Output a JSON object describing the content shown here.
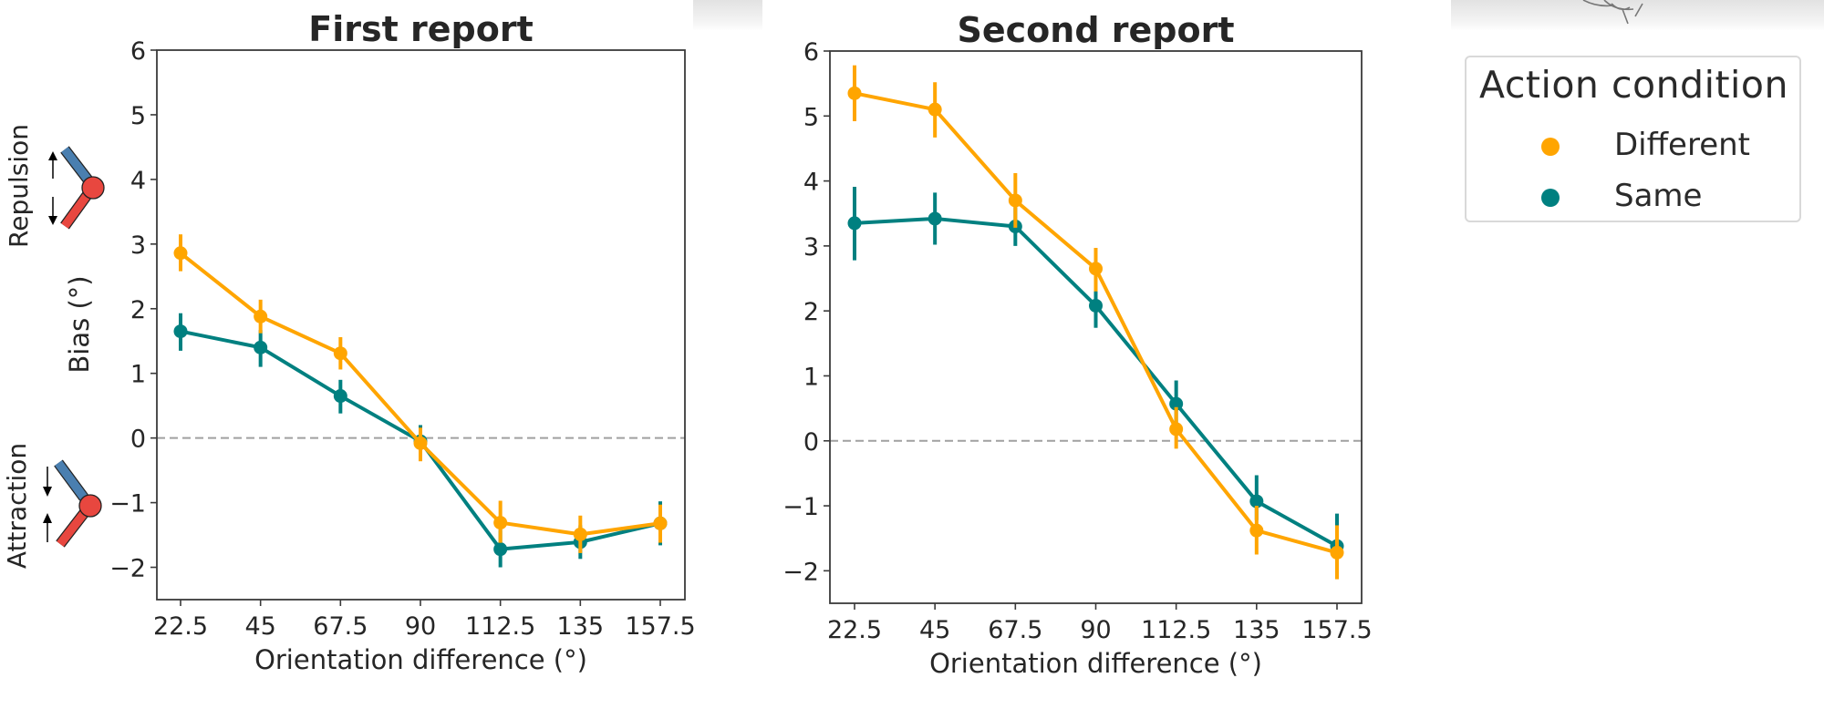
{
  "colors": {
    "different": "#FFA500",
    "same": "#008080",
    "zero_line": "#a0a0a0",
    "axis": "#3a3a3a",
    "icon_blue": "#4a7fb0",
    "icon_red": "#e8473f"
  },
  "side_labels": {
    "bias": "Bias (°)",
    "repulsion": "Repulsion",
    "attraction": "Attraction"
  },
  "icons": {
    "repulsion": "repulsion-diagram-icon",
    "attraction": "attraction-diagram-icon",
    "sketch": "hand-sketch-icon"
  },
  "legend": {
    "title": "Action condition",
    "items": [
      {
        "label": "Different",
        "series": "different"
      },
      {
        "label": "Same",
        "series": "same"
      }
    ]
  },
  "chart_data": [
    {
      "type": "line",
      "title": "First report",
      "xlabel": "Orientation difference (°)",
      "ylabel": "Bias (°)",
      "x": [
        22.5,
        45,
        67.5,
        90,
        112.5,
        135,
        157.5
      ],
      "x_tick_labels": [
        "22.5",
        "45",
        "67.5",
        "90",
        "112.5",
        "135",
        "157.5"
      ],
      "y_ticks": [
        -2,
        -1,
        0,
        1,
        2,
        3,
        4,
        5,
        6
      ],
      "y_tick_labels": [
        "−2",
        "−1",
        "0",
        "1",
        "2",
        "3",
        "4",
        "5",
        "6"
      ],
      "ylim": [
        -2.5,
        6
      ],
      "reference_line": 0,
      "grid": false,
      "series": [
        {
          "name": "Different",
          "key": "different",
          "values": [
            2.86,
            1.88,
            1.31,
            -0.08,
            -1.31,
            -1.49,
            -1.32
          ],
          "error_low": [
            2.58,
            1.62,
            1.06,
            -0.36,
            -1.62,
            -1.78,
            -1.62
          ],
          "error_high": [
            3.15,
            2.14,
            1.56,
            0.16,
            -0.97,
            -1.2,
            -1.03
          ]
        },
        {
          "name": "Same",
          "key": "same",
          "values": [
            1.65,
            1.4,
            0.65,
            -0.05,
            -1.72,
            -1.61,
            -1.32
          ],
          "error_low": [
            1.35,
            1.1,
            0.38,
            -0.3,
            -2.0,
            -1.87,
            -1.66
          ],
          "error_high": [
            1.93,
            1.67,
            0.9,
            0.2,
            -1.42,
            -1.35,
            -0.98
          ]
        }
      ]
    },
    {
      "type": "line",
      "title": "Second report",
      "xlabel": "Orientation difference (°)",
      "ylabel": "",
      "x": [
        22.5,
        45,
        67.5,
        90,
        112.5,
        135,
        157.5
      ],
      "x_tick_labels": [
        "22.5",
        "45",
        "67.5",
        "90",
        "112.5",
        "135",
        "157.5"
      ],
      "y_ticks": [
        -2,
        -1,
        0,
        1,
        2,
        3,
        4,
        5,
        6
      ],
      "y_tick_labels": [
        "−2",
        "−1",
        "0",
        "1",
        "2",
        "3",
        "4",
        "5",
        "6"
      ],
      "ylim": [
        -2.5,
        6
      ],
      "reference_line": 0,
      "grid": false,
      "series": [
        {
          "name": "Different",
          "key": "different",
          "values": [
            5.35,
            5.1,
            3.7,
            2.65,
            0.18,
            -1.38,
            -1.72
          ],
          "error_low": [
            4.92,
            4.67,
            3.28,
            2.3,
            -0.12,
            -1.75,
            -2.13
          ],
          "error_high": [
            5.78,
            5.52,
            4.12,
            2.97,
            0.52,
            -1.0,
            -1.3
          ]
        },
        {
          "name": "Same",
          "key": "same",
          "values": [
            3.35,
            3.42,
            3.3,
            2.08,
            0.57,
            -0.93,
            -1.62
          ],
          "error_low": [
            2.78,
            3.02,
            3.0,
            1.74,
            0.22,
            -1.22,
            -1.85
          ],
          "error_high": [
            3.91,
            3.82,
            3.6,
            2.32,
            0.93,
            -0.53,
            -1.12
          ]
        }
      ]
    }
  ]
}
